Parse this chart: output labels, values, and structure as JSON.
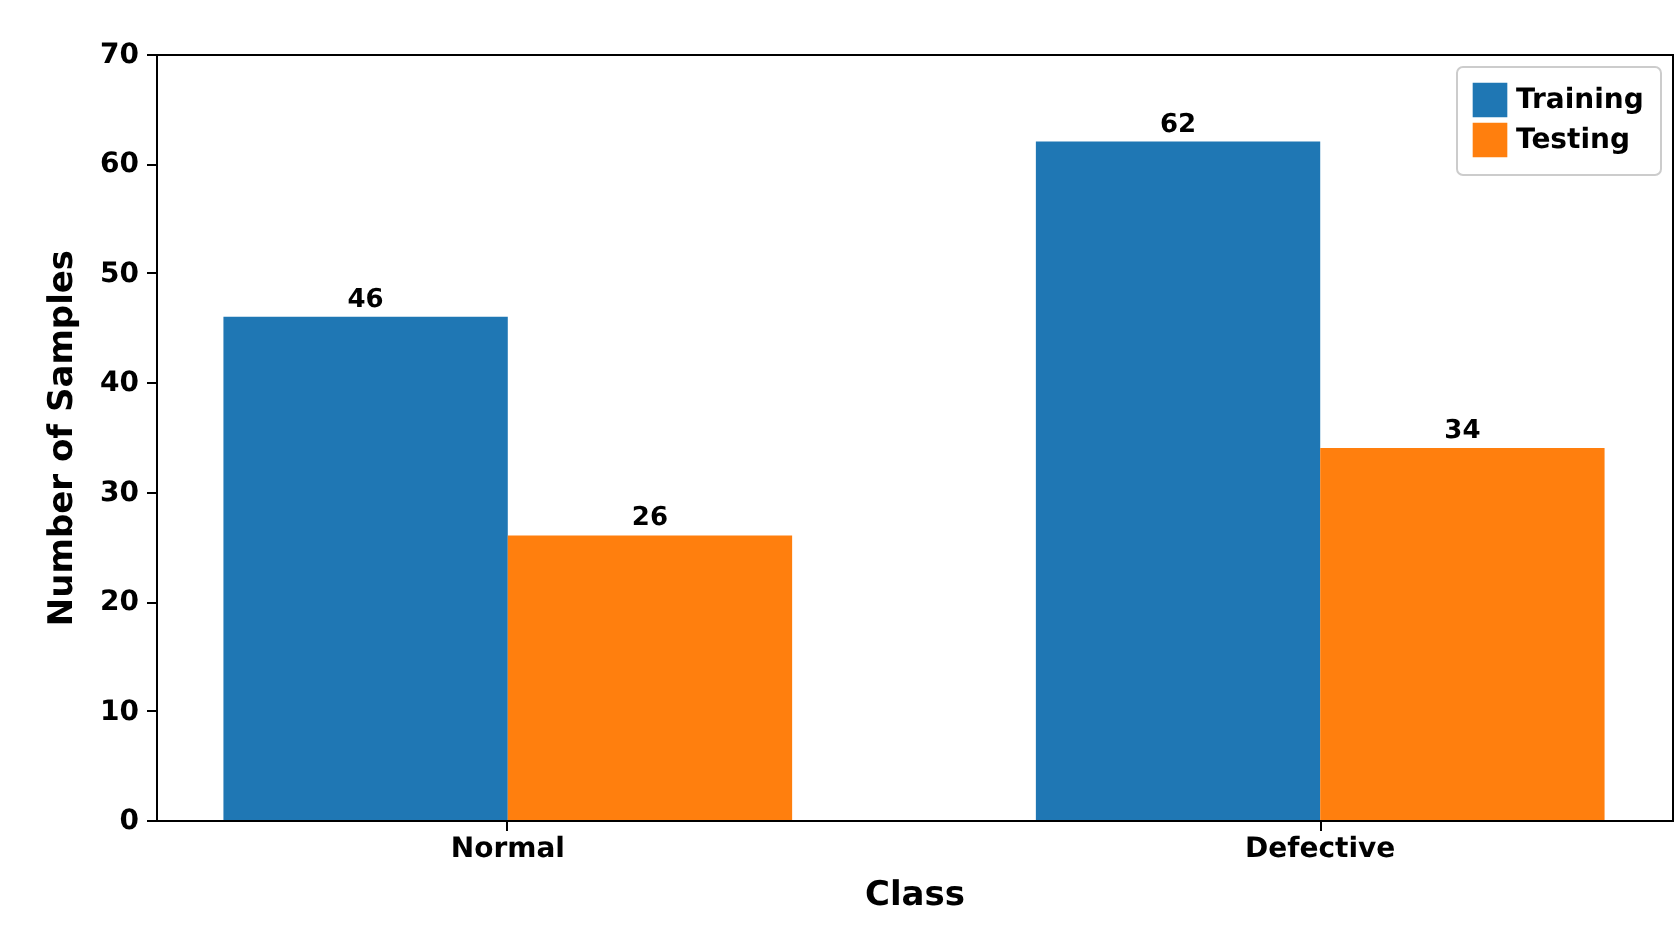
{
  "chart_data": {
    "type": "bar",
    "xlabel": "Class",
    "ylabel": "Number of Samples",
    "categories": [
      "Normal",
      "Defective"
    ],
    "series": [
      {
        "name": "Training",
        "color": "#1f77b4",
        "values": [
          46,
          62
        ]
      },
      {
        "name": "Testing",
        "color": "#ff7f0e",
        "values": [
          26,
          34
        ]
      }
    ],
    "ylim": [
      0,
      70
    ],
    "yticks": [
      0,
      10,
      20,
      30,
      40,
      50,
      60,
      70
    ],
    "grid": false,
    "legend": "top right",
    "data_labels": true
  }
}
